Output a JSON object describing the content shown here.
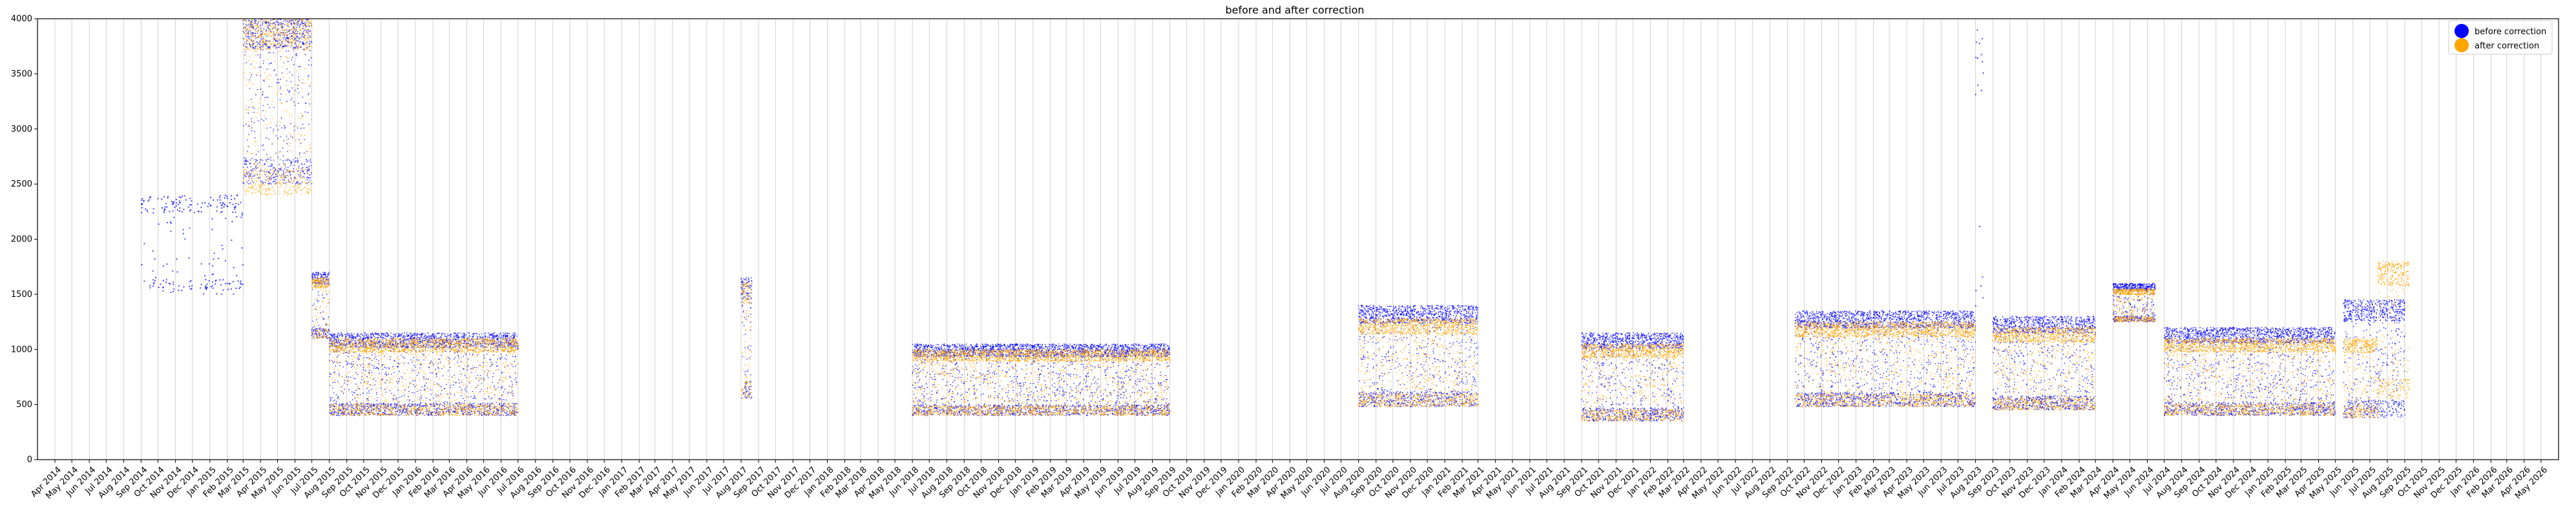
{
  "chart_data": {
    "type": "scatter",
    "title": "before and after correction",
    "xlabel": "",
    "ylabel": "",
    "ylim": [
      0,
      4000
    ],
    "yticks": [
      0,
      500,
      1000,
      1500,
      2000,
      2500,
      3000,
      3500,
      4000
    ],
    "xlim": [
      "2014-03-01",
      "2026-06-01"
    ],
    "x_tick_labels": [
      "Apr 2014",
      "May 2014",
      "Jun 2014",
      "Jul 2014",
      "Aug 2014",
      "Sep 2014",
      "Oct 2014",
      "Nov 2014",
      "Dec 2014",
      "Jan 2015",
      "Feb 2015",
      "Mar 2015",
      "Apr 2015",
      "May 2015",
      "Jun 2015",
      "Jul 2015",
      "Aug 2015",
      "Sep 2015",
      "Oct 2015",
      "Nov 2015",
      "Dec 2015",
      "Jan 2016",
      "Feb 2016",
      "Mar 2016",
      "Apr 2016",
      "May 2016",
      "Jun 2016",
      "Jul 2016",
      "Aug 2016",
      "Sep 2016",
      "Oct 2016",
      "Nov 2016",
      "Dec 2016",
      "Jan 2017",
      "Feb 2017",
      "Mar 2017",
      "Apr 2017",
      "May 2017",
      "Jun 2017",
      "Jul 2017",
      "Aug 2017",
      "Sep 2017",
      "Oct 2017",
      "Nov 2017",
      "Dec 2017",
      "Jan 2018",
      "Feb 2018",
      "Mar 2018",
      "Apr 2018",
      "May 2018",
      "Jun 2018",
      "Jul 2018",
      "Aug 2018",
      "Sep 2018",
      "Oct 2018",
      "Nov 2018",
      "Dec 2018",
      "Jan 2019",
      "Feb 2019",
      "Mar 2019",
      "Apr 2019",
      "May 2019",
      "Jun 2019",
      "Jul 2019",
      "Aug 2019",
      "Sep 2019",
      "Oct 2019",
      "Nov 2019",
      "Dec 2019",
      "Jan 2020",
      "Feb 2020",
      "Mar 2020",
      "Apr 2020",
      "May 2020",
      "Jun 2020",
      "Jul 2020",
      "Aug 2020",
      "Sep 2020",
      "Oct 2020",
      "Nov 2020",
      "Dec 2020",
      "Jan 2021",
      "Feb 2021",
      "Mar 2021",
      "Apr 2021",
      "May 2021",
      "Jun 2021",
      "Jul 2021",
      "Aug 2021",
      "Sep 2021",
      "Oct 2021",
      "Nov 2021",
      "Dec 2021",
      "Jan 2022",
      "Feb 2022",
      "Mar 2022",
      "Apr 2022",
      "May 2022",
      "Jun 2022",
      "Jul 2022",
      "Aug 2022",
      "Sep 2022",
      "Oct 2022",
      "Nov 2022",
      "Dec 2022",
      "Jan 2023",
      "Feb 2023",
      "Mar 2023",
      "Apr 2023",
      "May 2023",
      "Jun 2023",
      "Jul 2023",
      "Aug 2023",
      "Sep 2023",
      "Oct 2023",
      "Nov 2023",
      "Dec 2023",
      "Jan 2024",
      "Feb 2024",
      "Mar 2024",
      "Apr 2024",
      "May 2024",
      "Jun 2024",
      "Jul 2024",
      "Aug 2024",
      "Sep 2024",
      "Oct 2024",
      "Nov 2024",
      "Dec 2024",
      "Jan 2025",
      "Feb 2025",
      "Mar 2025",
      "Apr 2025",
      "May 2025",
      "Jun 2025",
      "Jul 2025",
      "Aug 2025",
      "Sep 2025",
      "Oct 2025",
      "Nov 2025",
      "Dec 2025",
      "Jan 2026",
      "Feb 2026",
      "Mar 2026",
      "Apr 2026",
      "May 2026"
    ],
    "grid": "vertical",
    "legend": "top-right",
    "series": [
      {
        "name": "before correction",
        "color": "#0000ff",
        "segments": [
          {
            "start": "2014-09-01",
            "end": "2015-03-01",
            "upper": 2400,
            "lower": 1500,
            "density": "sparse"
          },
          {
            "start": "2015-03-01",
            "end": "2015-07-01",
            "upper": 4000,
            "lower": 2500,
            "density": "dense"
          },
          {
            "start": "2015-07-01",
            "end": "2015-08-01",
            "upper": 1700,
            "lower": 1100,
            "density": "dense"
          },
          {
            "start": "2015-08-01",
            "end": "2016-07-01",
            "upper": 1150,
            "lower": 400,
            "density": "dense"
          },
          {
            "start": "2017-08-01",
            "end": "2017-08-20",
            "upper": 1650,
            "lower": 550,
            "density": "dense"
          },
          {
            "start": "2018-06-01",
            "end": "2019-09-01",
            "upper": 1050,
            "lower": 400,
            "density": "dense"
          },
          {
            "start": "2020-08-01",
            "end": "2021-03-01",
            "upper": 1400,
            "lower": 480,
            "density": "dense"
          },
          {
            "start": "2021-09-01",
            "end": "2022-03-01",
            "upper": 1150,
            "lower": 350,
            "density": "dense"
          },
          {
            "start": "2022-09-15",
            "end": "2023-08-01",
            "upper": 1350,
            "lower": 480,
            "density": "dense"
          },
          {
            "start": "2023-08-01",
            "end": "2023-08-15",
            "upper": 3900,
            "lower": 1300,
            "density": "sparse"
          },
          {
            "start": "2023-09-01",
            "end": "2024-03-01",
            "upper": 1300,
            "lower": 450,
            "density": "dense"
          },
          {
            "start": "2024-04-01",
            "end": "2024-06-15",
            "upper": 1600,
            "lower": 1250,
            "density": "dense"
          },
          {
            "start": "2024-07-01",
            "end": "2025-05-01",
            "upper": 1200,
            "lower": 400,
            "density": "dense"
          },
          {
            "start": "2025-05-15",
            "end": "2025-09-01",
            "upper": 1450,
            "lower": 380,
            "density": "dense"
          }
        ]
      },
      {
        "name": "after correction",
        "color": "#ffa500",
        "segments": [
          {
            "start": "2015-03-01",
            "end": "2015-07-01",
            "upper": 4000,
            "lower": 2400,
            "density": "dense"
          },
          {
            "start": "2015-07-01",
            "end": "2015-08-01",
            "upper": 1650,
            "lower": 1100,
            "density": "dense"
          },
          {
            "start": "2015-08-01",
            "end": "2016-07-01",
            "upper": 1100,
            "lower": 400,
            "density": "dense"
          },
          {
            "start": "2017-08-01",
            "end": "2017-08-20",
            "upper": 1600,
            "lower": 550,
            "density": "dense"
          },
          {
            "start": "2018-06-01",
            "end": "2019-09-01",
            "upper": 1000,
            "lower": 400,
            "density": "dense"
          },
          {
            "start": "2020-08-01",
            "end": "2021-03-01",
            "upper": 1280,
            "lower": 480,
            "density": "dense"
          },
          {
            "start": "2021-09-01",
            "end": "2022-03-01",
            "upper": 1050,
            "lower": 350,
            "density": "dense"
          },
          {
            "start": "2022-09-15",
            "end": "2023-08-01",
            "upper": 1250,
            "lower": 480,
            "density": "dense"
          },
          {
            "start": "2023-09-01",
            "end": "2024-03-01",
            "upper": 1200,
            "lower": 450,
            "density": "dense"
          },
          {
            "start": "2024-04-01",
            "end": "2024-06-15",
            "upper": 1550,
            "lower": 1250,
            "density": "dense"
          },
          {
            "start": "2024-07-01",
            "end": "2025-05-01",
            "upper": 1100,
            "lower": 400,
            "density": "dense"
          },
          {
            "start": "2025-05-15",
            "end": "2025-07-15",
            "upper": 1100,
            "lower": 380,
            "density": "dense"
          },
          {
            "start": "2025-07-15",
            "end": "2025-09-10",
            "upper": 1800,
            "lower": 550,
            "density": "dense"
          }
        ]
      }
    ]
  }
}
